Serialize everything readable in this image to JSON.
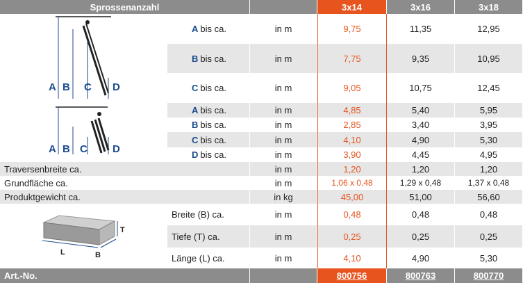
{
  "header": {
    "label": "Sprossenanzahl",
    "cols": [
      "3x14",
      "3x16",
      "3x18"
    ]
  },
  "rows": [
    {
      "letter": "A",
      "text": "bis ca.",
      "unit": "in m",
      "v": [
        "9,75",
        "11,35",
        "12,95"
      ]
    },
    {
      "letter": "B",
      "text": "bis ca.",
      "unit": "in m",
      "v": [
        "7,75",
        "9,35",
        "10,95"
      ]
    },
    {
      "letter": "C",
      "text": "bis ca.",
      "unit": "in m",
      "v": [
        "9,05",
        "10,75",
        "12,45"
      ]
    },
    {
      "letter": "A",
      "text": "bis ca.",
      "unit": "in m",
      "v": [
        "4,85",
        "5,40",
        "5,95"
      ]
    },
    {
      "letter": "B",
      "text": "bis ca.",
      "unit": "in m",
      "v": [
        "2,85",
        "3,40",
        "3,95"
      ]
    },
    {
      "letter": "C",
      "text": "bis ca.",
      "unit": "in m",
      "v": [
        "4,10",
        "4,90",
        "5,30"
      ]
    },
    {
      "letter": "D",
      "text": "bis ca.",
      "unit": "in m",
      "v": [
        "3,90",
        "4,45",
        "4,95"
      ]
    }
  ],
  "wide_rows": [
    {
      "label": "Traversenbreite ca.",
      "unit": "in m",
      "v": [
        "1,20",
        "1,20",
        "1,20"
      ]
    },
    {
      "label": "Grundfläche ca.",
      "unit": "in m",
      "v": [
        "1,06 x 0,48",
        "1,29 x 0,48",
        "1,37 x 0,48"
      ]
    },
    {
      "label": "Produktgewicht ca.",
      "unit": "in kg",
      "v": [
        "45,00",
        "51,00",
        "56,60"
      ]
    }
  ],
  "pack_rows": [
    {
      "label": "Breite (B) ca.",
      "unit": "in m",
      "v": [
        "0,48",
        "0,48",
        "0,48"
      ]
    },
    {
      "label": "Tiefe (T) ca.",
      "unit": "in m",
      "v": [
        "0,25",
        "0,25",
        "0,25"
      ]
    },
    {
      "label": "Länge (L) ca.",
      "unit": "in m",
      "v": [
        "4,10",
        "4,90",
        "5,30"
      ]
    }
  ],
  "footer": {
    "label": "Art.-No.",
    "nums": [
      "800756",
      "800763",
      "800770"
    ]
  },
  "diagram_labels": {
    "a": "A",
    "b": "B",
    "c": "C",
    "d": "D",
    "l": "L",
    "bb": "B",
    "t": "T"
  },
  "colors": {
    "accent": "#e8541e",
    "header": "#8c8c8c",
    "stripe": "#e6e6e6",
    "letter": "#1a4a8e"
  }
}
